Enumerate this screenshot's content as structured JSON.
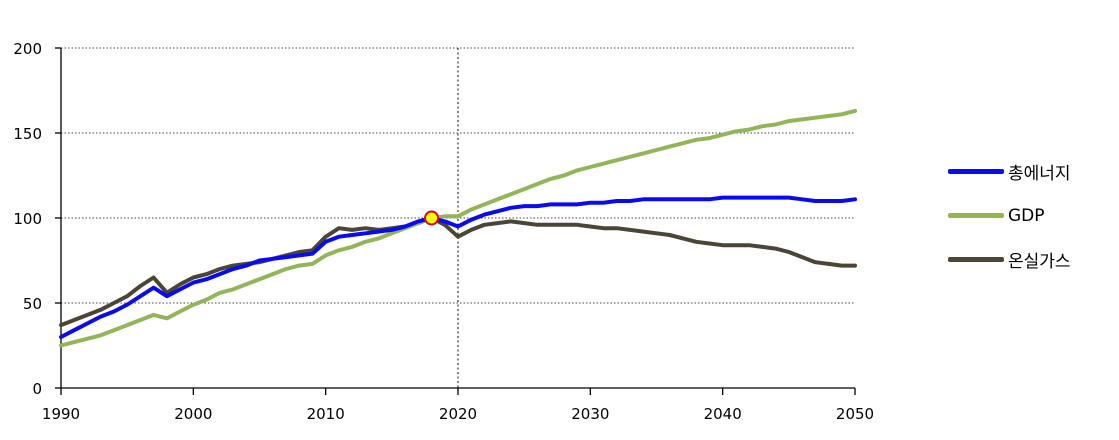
{
  "chart_data": {
    "type": "line",
    "title": "",
    "xlabel": "",
    "ylabel": "",
    "xlim": [
      1990,
      2050
    ],
    "ylim": [
      0,
      200
    ],
    "x_ticks": [
      1990,
      2000,
      2010,
      2020,
      2030,
      2040,
      2050
    ],
    "y_ticks": [
      0,
      50,
      100,
      150,
      200
    ],
    "grid": "horizontal-dotted",
    "reference_line_x": 2020,
    "marker": {
      "x": 2018,
      "y": 100,
      "color": "#ffff00",
      "edge": "#e0001b"
    },
    "legend_position": "right",
    "series": [
      {
        "name": "총에너지",
        "color": "#0a0af0",
        "x": [
          1990,
          1991,
          1992,
          1993,
          1994,
          1995,
          1996,
          1997,
          1998,
          1999,
          2000,
          2001,
          2002,
          2003,
          2004,
          2005,
          2006,
          2007,
          2008,
          2009,
          2010,
          2011,
          2012,
          2013,
          2014,
          2015,
          2016,
          2017,
          2018,
          2019,
          2020,
          2021,
          2022,
          2023,
          2024,
          2025,
          2026,
          2027,
          2028,
          2029,
          2030,
          2031,
          2032,
          2033,
          2034,
          2035,
          2036,
          2037,
          2038,
          2039,
          2040,
          2041,
          2042,
          2043,
          2044,
          2045,
          2046,
          2047,
          2048,
          2049,
          2050
        ],
        "values": [
          30,
          34,
          38,
          42,
          45,
          49,
          54,
          59,
          54,
          58,
          62,
          64,
          67,
          70,
          72,
          75,
          76,
          77,
          78,
          79,
          86,
          89,
          90,
          91,
          92,
          93,
          95,
          98,
          100,
          98,
          95,
          99,
          102,
          104,
          106,
          107,
          107,
          108,
          108,
          108,
          109,
          109,
          110,
          110,
          111,
          111,
          111,
          111,
          111,
          111,
          112,
          112,
          112,
          112,
          112,
          112,
          111,
          110,
          110,
          110,
          111
        ]
      },
      {
        "name": "GDP",
        "color": "#92b55a",
        "x": [
          1990,
          1991,
          1992,
          1993,
          1994,
          1995,
          1996,
          1997,
          1998,
          1999,
          2000,
          2001,
          2002,
          2003,
          2004,
          2005,
          2006,
          2007,
          2008,
          2009,
          2010,
          2011,
          2012,
          2013,
          2014,
          2015,
          2016,
          2017,
          2018,
          2019,
          2020,
          2021,
          2022,
          2023,
          2024,
          2025,
          2026,
          2027,
          2028,
          2029,
          2030,
          2031,
          2032,
          2033,
          2034,
          2035,
          2036,
          2037,
          2038,
          2039,
          2040,
          2041,
          2042,
          2043,
          2044,
          2045,
          2046,
          2047,
          2048,
          2049,
          2050
        ],
        "values": [
          25,
          27,
          29,
          31,
          34,
          37,
          40,
          43,
          41,
          45,
          49,
          52,
          56,
          58,
          61,
          64,
          67,
          70,
          72,
          73,
          78,
          81,
          83,
          86,
          88,
          91,
          94,
          97,
          100,
          101,
          101,
          105,
          108,
          111,
          114,
          117,
          120,
          123,
          125,
          128,
          130,
          132,
          134,
          136,
          138,
          140,
          142,
          144,
          146,
          147,
          149,
          151,
          152,
          154,
          155,
          157,
          158,
          159,
          160,
          161,
          163
        ]
      },
      {
        "name": "온실가스",
        "color": "#4a4536",
        "x": [
          1990,
          1991,
          1992,
          1993,
          1994,
          1995,
          1996,
          1997,
          1998,
          1999,
          2000,
          2001,
          2002,
          2003,
          2004,
          2005,
          2006,
          2007,
          2008,
          2009,
          2010,
          2011,
          2012,
          2013,
          2014,
          2015,
          2016,
          2017,
          2018,
          2019,
          2020,
          2021,
          2022,
          2023,
          2024,
          2025,
          2026,
          2027,
          2028,
          2029,
          2030,
          2031,
          2032,
          2033,
          2034,
          2035,
          2036,
          2037,
          2038,
          2039,
          2040,
          2041,
          2042,
          2043,
          2044,
          2045,
          2046,
          2047,
          2048,
          2049,
          2050
        ],
        "values": [
          37,
          40,
          43,
          46,
          50,
          54,
          60,
          65,
          56,
          61,
          65,
          67,
          70,
          72,
          73,
          74,
          76,
          78,
          80,
          81,
          89,
          94,
          93,
          94,
          93,
          94,
          95,
          97,
          100,
          96,
          89,
          93,
          96,
          97,
          98,
          97,
          96,
          96,
          96,
          96,
          95,
          94,
          94,
          93,
          92,
          91,
          90,
          88,
          86,
          85,
          84,
          84,
          84,
          83,
          82,
          80,
          77,
          74,
          73,
          72,
          72
        ]
      }
    ]
  }
}
